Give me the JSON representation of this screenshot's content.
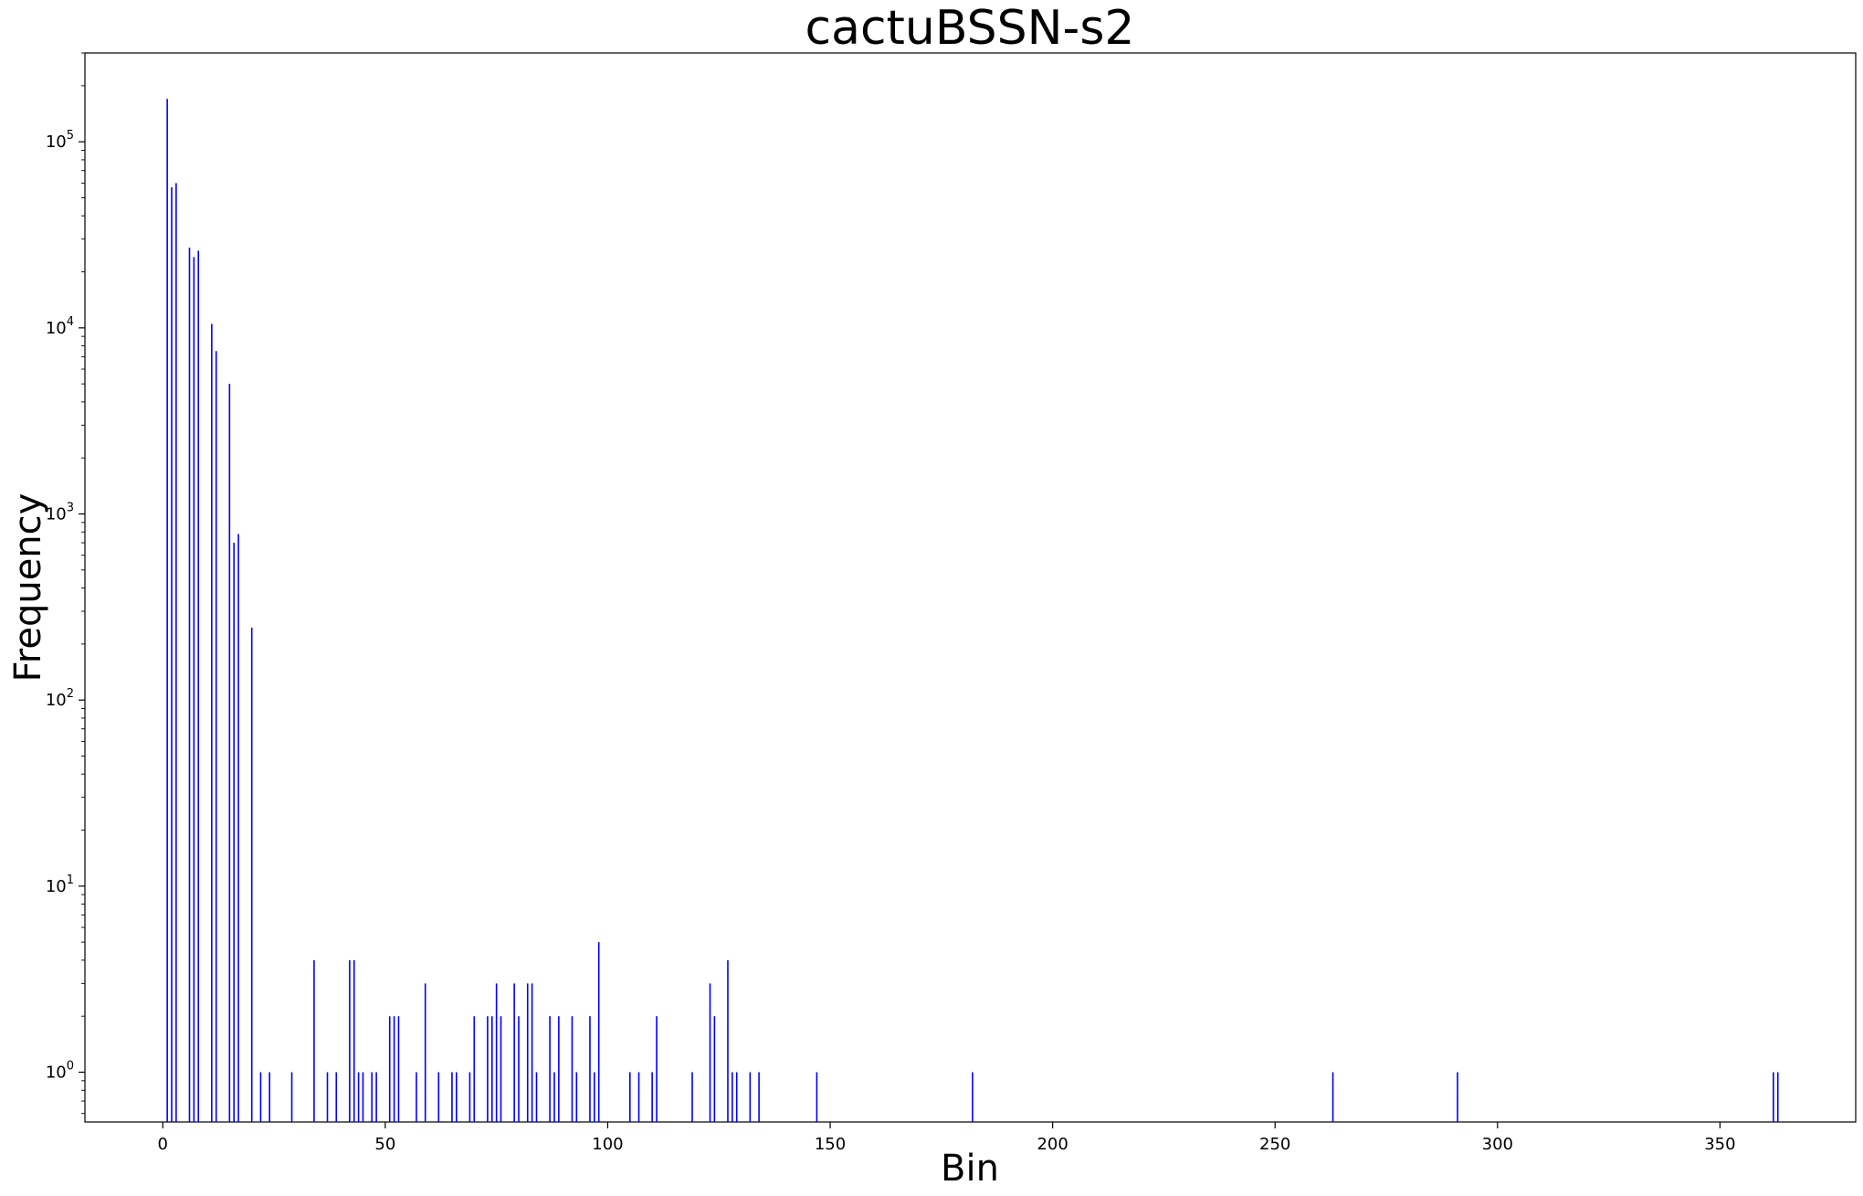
{
  "chart_data": {
    "type": "bar",
    "title": "cactuBSSN-s2",
    "xlabel": "Bin",
    "ylabel": "Frequency",
    "yscale": "log",
    "xlim": [
      -17.5,
      380.5
    ],
    "ylim": [
      0.54,
      300000
    ],
    "xticks": [
      0,
      50,
      100,
      150,
      200,
      250,
      300,
      350
    ],
    "yticks": [
      {
        "value": 1,
        "base": "10",
        "exp": "0"
      },
      {
        "value": 10,
        "base": "10",
        "exp": "1"
      },
      {
        "value": 100,
        "base": "10",
        "exp": "2"
      },
      {
        "value": 1000,
        "base": "10",
        "exp": "3"
      },
      {
        "value": 10000,
        "base": "10",
        "exp": "4"
      },
      {
        "value": 100000,
        "base": "10",
        "exp": "5"
      }
    ],
    "bar_color": "#0000ff",
    "grid": false,
    "bins": [
      1,
      2,
      3,
      6,
      7,
      8,
      11,
      12,
      15,
      16,
      17,
      20,
      22,
      24,
      29,
      34,
      37,
      39,
      42,
      43,
      44,
      45,
      47,
      48,
      51,
      52,
      53,
      57,
      59,
      62,
      65,
      66,
      69,
      70,
      73,
      74,
      75,
      76,
      79,
      80,
      82,
      83,
      84,
      87,
      88,
      89,
      92,
      93,
      96,
      97,
      98,
      105,
      107,
      110,
      111,
      119,
      123,
      124,
      127,
      128,
      129,
      132,
      134,
      147,
      182,
      263,
      291,
      362,
      363
    ],
    "values": [
      170000,
      57000,
      60000,
      27000,
      24000,
      26000,
      10500,
      7500,
      5000,
      700,
      780,
      245,
      1,
      1,
      1,
      4,
      1,
      1,
      4,
      4,
      1,
      1,
      1,
      1,
      2,
      2,
      2,
      1,
      3,
      1,
      1,
      1,
      1,
      2,
      2,
      2,
      3,
      2,
      3,
      2,
      3,
      3,
      1,
      2,
      1,
      2,
      2,
      1,
      2,
      1,
      5,
      1,
      1,
      1,
      2,
      1,
      3,
      2,
      4,
      1,
      1,
      1,
      1,
      1,
      1,
      1,
      1,
      1,
      1
    ]
  }
}
